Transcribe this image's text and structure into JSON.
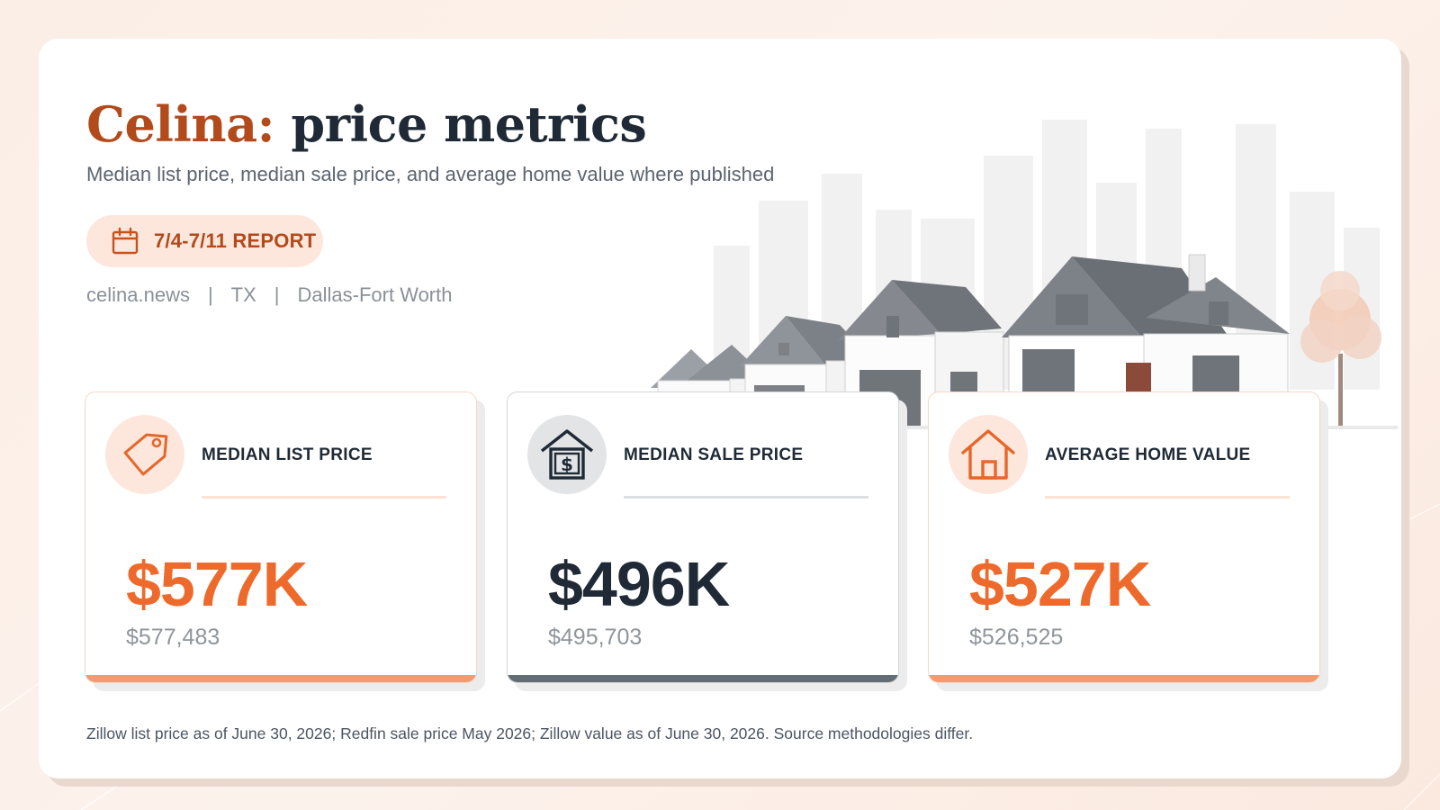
{
  "header": {
    "title_city": "Celina:",
    "title_rest": "price metrics",
    "subtitle": "Median list price, median sale price, and average home value where published"
  },
  "report": {
    "label": "7/4-7/11 REPORT",
    "icon": "calendar-icon"
  },
  "meta": {
    "site": "celina.news",
    "state": "TX",
    "metro": "Dallas-Fort Worth",
    "separator": "|"
  },
  "metrics": [
    {
      "label": "MEDIAN LIST PRICE",
      "value": "$577K",
      "exact": "$577,483",
      "icon": "price-tag-icon",
      "accent": "#ee6a2c"
    },
    {
      "label": "MEDIAN SALE PRICE",
      "value": "$496K",
      "exact": "$495,703",
      "icon": "house-dollar-icon",
      "accent": "#1f2a36"
    },
    {
      "label": "AVERAGE HOME VALUE",
      "value": "$527K",
      "exact": "$526,525",
      "icon": "home-icon",
      "accent": "#ee6a2c"
    }
  ],
  "footnote": "Zillow list price as of June 30, 2026; Redfin sale price May 2026; Zillow value as of June 30, 2026. Source methodologies differ.",
  "colors": {
    "brand": "#b24a1b",
    "accent": "#ee6a2c",
    "dark": "#1f2a36",
    "muted": "#8a9099"
  }
}
